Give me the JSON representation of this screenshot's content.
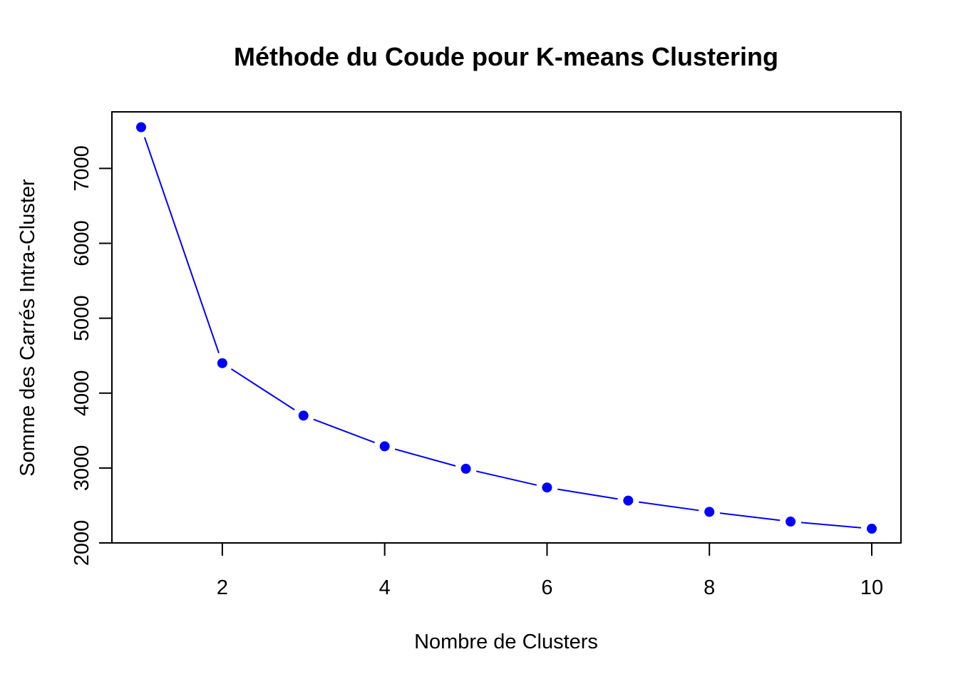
{
  "chart_data": {
    "type": "line",
    "title": "Méthode du Coude pour K-means Clustering",
    "xlabel": "Nombre de Clusters",
    "ylabel": "Somme des Carrés Intra-Cluster",
    "x": [
      1,
      2,
      3,
      4,
      5,
      6,
      7,
      8,
      9,
      10
    ],
    "y": [
      7550,
      4400,
      3700,
      3290,
      2990,
      2740,
      2565,
      2415,
      2285,
      2190
    ],
    "xlim": [
      0.64,
      10.36
    ],
    "ylim": [
      2000,
      7755
    ],
    "xticks": [
      "2",
      "4",
      "6",
      "8",
      "10"
    ],
    "yticks": [
      "2000",
      "3000",
      "4000",
      "5000",
      "6000",
      "7000"
    ],
    "marker": "filled-circle",
    "line_style": "solid line connecting points, gaps near markers",
    "color": "#0000ff",
    "grid": false,
    "legend": "none"
  }
}
